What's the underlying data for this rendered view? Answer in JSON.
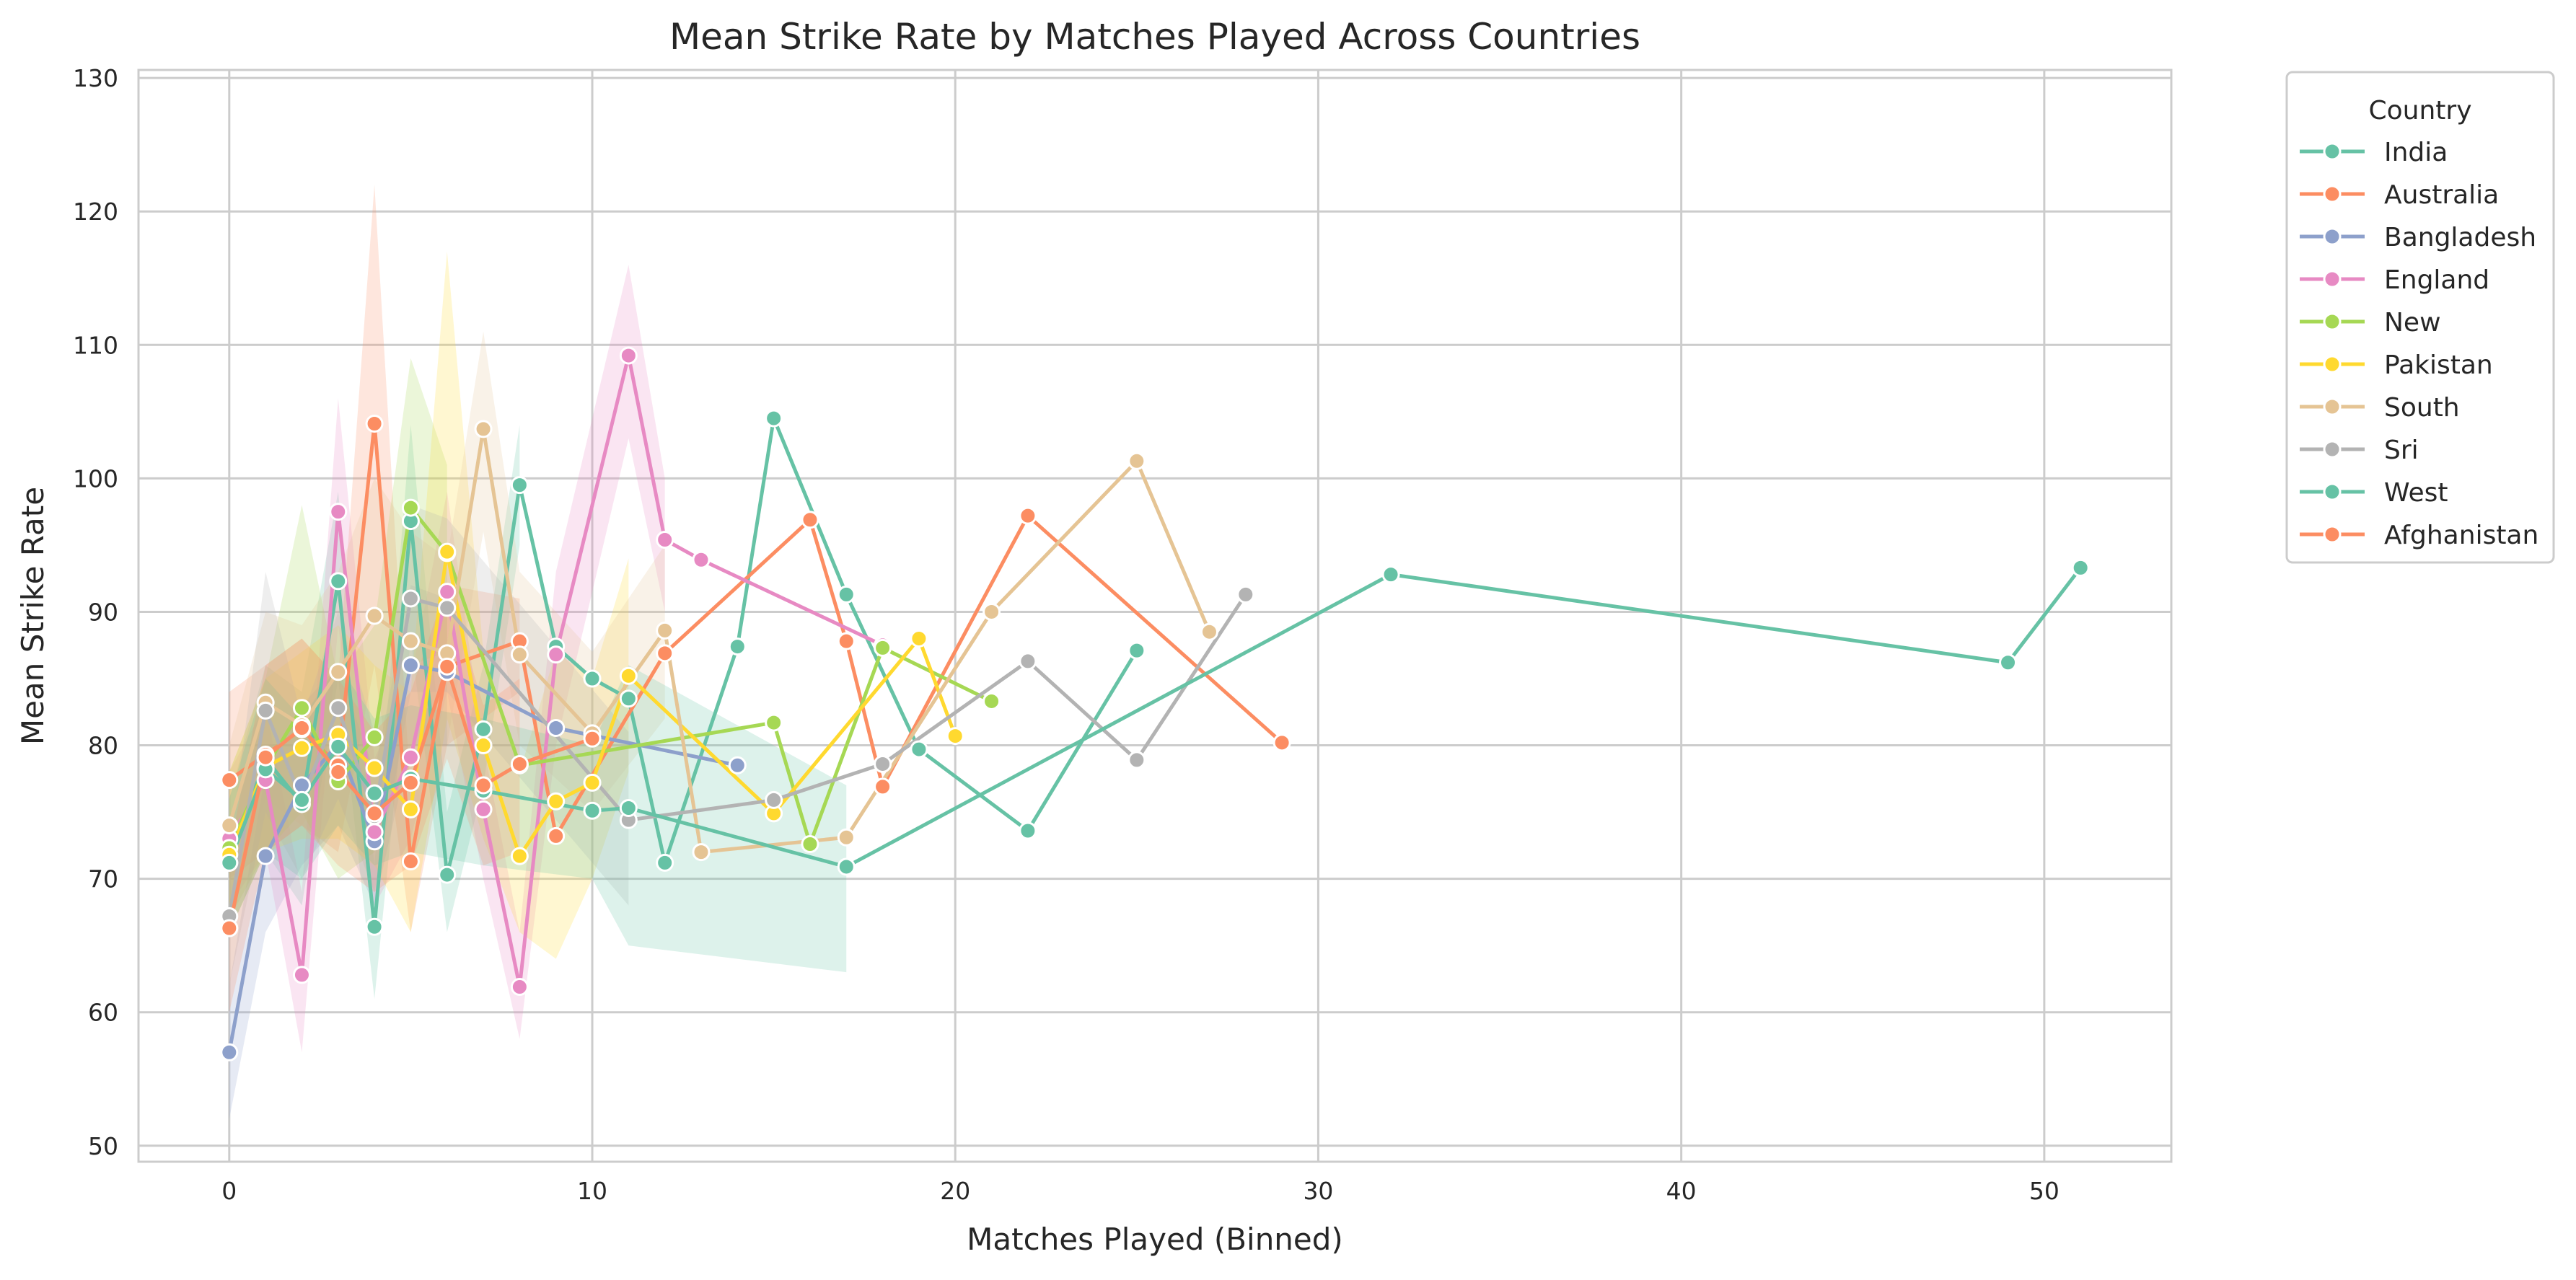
{
  "chart_data": {
    "type": "line",
    "title": "Mean Strike Rate by Matches Played Across Countries",
    "xlabel": "Matches Played (Binned)",
    "ylabel": "Mean Strike Rate",
    "xlim": [
      -2.5,
      53.5
    ],
    "ylim": [
      48.8,
      130.6
    ],
    "xticks": [
      0,
      10,
      20,
      30,
      40,
      50
    ],
    "yticks": [
      50,
      60,
      70,
      80,
      90,
      100,
      110,
      120,
      130
    ],
    "grid": true,
    "legend": {
      "title": "Country",
      "placement": "outside-top-right"
    },
    "series": [
      {
        "name": "India",
        "color": "#66c2a5",
        "points": [
          [
            0,
            71.2
          ],
          [
            1,
            79.0
          ],
          [
            2,
            75.6
          ],
          [
            3,
            92.3
          ],
          [
            4,
            66.4
          ],
          [
            5,
            96.8
          ],
          [
            6,
            70.3
          ],
          [
            7,
            81.2
          ],
          [
            8,
            99.5
          ],
          [
            9,
            87.4
          ],
          [
            10,
            85.0
          ],
          [
            11,
            83.5
          ],
          [
            12,
            71.2
          ],
          [
            14,
            87.4
          ],
          [
            15,
            104.5
          ],
          [
            17,
            91.3
          ],
          [
            19,
            79.7
          ],
          [
            22,
            73.6
          ],
          [
            25,
            87.1
          ]
        ],
        "band": [
          [
            0,
            66,
            76
          ],
          [
            1,
            72,
            86
          ],
          [
            2,
            68,
            84
          ],
          [
            3,
            85,
            99
          ],
          [
            4,
            61,
            71
          ],
          [
            5,
            88,
            104
          ],
          [
            6,
            66,
            75
          ],
          [
            7,
            77,
            86
          ],
          [
            8,
            95,
            104
          ]
        ]
      },
      {
        "name": "Australia",
        "color": "#fc8d62",
        "points": [
          [
            0,
            77.4
          ],
          [
            1,
            79.3
          ],
          [
            2,
            81.2
          ],
          [
            3,
            78.5
          ],
          [
            4,
            104.1
          ],
          [
            5,
            71.3
          ],
          [
            6,
            85.9
          ],
          [
            8,
            87.8
          ],
          [
            9,
            73.2
          ],
          [
            12,
            86.9
          ],
          [
            16,
            96.9
          ],
          [
            17,
            87.8
          ],
          [
            18,
            76.9
          ],
          [
            22,
            97.2
          ],
          [
            29,
            80.2
          ]
        ],
        "band": [
          [
            0,
            70,
            84
          ],
          [
            1,
            72,
            86
          ],
          [
            2,
            74,
            88
          ],
          [
            3,
            72,
            85
          ],
          [
            4,
            86,
            122
          ],
          [
            5,
            66,
            76
          ],
          [
            6,
            80,
            92
          ],
          [
            8,
            84,
            91
          ]
        ]
      },
      {
        "name": "Bangladesh",
        "color": "#8da0cb",
        "points": [
          [
            0,
            57.0
          ],
          [
            1,
            71.7
          ],
          [
            2,
            77.0
          ],
          [
            3,
            80.1
          ],
          [
            4,
            72.8
          ],
          [
            5,
            86.0
          ],
          [
            6,
            85.5
          ],
          [
            9,
            81.3
          ],
          [
            14,
            78.5
          ]
        ],
        "band": [
          [
            0,
            52,
            62
          ],
          [
            1,
            66,
            78
          ],
          [
            2,
            71,
            83
          ],
          [
            3,
            74,
            86
          ],
          [
            4,
            68,
            78
          ],
          [
            5,
            80,
            92
          ],
          [
            6,
            80,
            91
          ]
        ]
      },
      {
        "name": "England",
        "color": "#e78ac3",
        "points": [
          [
            0,
            73.0
          ],
          [
            1,
            77.4
          ],
          [
            2,
            62.8
          ],
          [
            3,
            97.5
          ],
          [
            4,
            73.5
          ],
          [
            5,
            79.1
          ],
          [
            6,
            91.5
          ],
          [
            7,
            75.2
          ],
          [
            8,
            61.9
          ],
          [
            9,
            86.8
          ],
          [
            11,
            109.2
          ],
          [
            12,
            95.4
          ],
          [
            13,
            93.9
          ],
          [
            18,
            87.5
          ]
        ],
        "band": [
          [
            0,
            68,
            78
          ],
          [
            1,
            72,
            83
          ],
          [
            2,
            57,
            69
          ],
          [
            3,
            89,
            106
          ],
          [
            4,
            68,
            79
          ],
          [
            5,
            73,
            85
          ],
          [
            6,
            84,
            99
          ],
          [
            7,
            70,
            80
          ],
          [
            8,
            58,
            66
          ],
          [
            9,
            80,
            93
          ],
          [
            11,
            103,
            116
          ],
          [
            12,
            90,
            100
          ]
        ]
      },
      {
        "name": "New",
        "color": "#a6d854",
        "points": [
          [
            0,
            72.3
          ],
          [
            1,
            78.3
          ],
          [
            2,
            82.8
          ],
          [
            3,
            77.3
          ],
          [
            4,
            80.6
          ],
          [
            5,
            97.8
          ],
          [
            6,
            94.4
          ],
          [
            8,
            78.5
          ],
          [
            15,
            81.7
          ],
          [
            16,
            72.6
          ],
          [
            18,
            87.3
          ],
          [
            21,
            83.3
          ]
        ],
        "band": [
          [
            0,
            67,
            78
          ],
          [
            1,
            72,
            85
          ],
          [
            2,
            75,
            98
          ],
          [
            3,
            70,
            85
          ],
          [
            4,
            72,
            89
          ],
          [
            5,
            86,
            109
          ],
          [
            6,
            87,
            101
          ]
        ]
      },
      {
        "name": "Pakistan",
        "color": "#ffd92f",
        "points": [
          [
            0,
            71.8
          ],
          [
            1,
            78.4
          ],
          [
            2,
            79.8
          ],
          [
            3,
            80.8
          ],
          [
            4,
            78.3
          ],
          [
            5,
            75.2
          ],
          [
            6,
            94.5
          ],
          [
            7,
            80.0
          ],
          [
            8,
            71.7
          ],
          [
            9,
            75.8
          ],
          [
            10,
            77.2
          ],
          [
            11,
            85.2
          ],
          [
            15,
            74.9
          ],
          [
            19,
            88.0
          ],
          [
            20,
            80.7
          ]
        ],
        "band": [
          [
            0,
            66,
            78
          ],
          [
            1,
            72,
            85
          ],
          [
            2,
            73,
            87
          ],
          [
            3,
            73,
            89
          ],
          [
            4,
            71,
            86
          ],
          [
            5,
            66,
            84
          ],
          [
            6,
            82,
            117
          ],
          [
            7,
            73,
            87
          ],
          [
            8,
            66,
            78
          ],
          [
            9,
            64,
            87
          ],
          [
            10,
            70,
            85
          ],
          [
            11,
            78,
            94
          ]
        ]
      },
      {
        "name": "South",
        "color": "#e5c494",
        "points": [
          [
            0,
            74.0
          ],
          [
            1,
            83.2
          ],
          [
            2,
            81.5
          ],
          [
            3,
            85.5
          ],
          [
            4,
            89.7
          ],
          [
            5,
            87.8
          ],
          [
            6,
            86.9
          ],
          [
            7,
            103.7
          ],
          [
            8,
            86.8
          ],
          [
            10,
            80.9
          ],
          [
            12,
            88.6
          ],
          [
            13,
            72.0
          ],
          [
            17,
            73.1
          ],
          [
            21,
            90.0
          ],
          [
            25,
            101.3
          ],
          [
            27,
            88.5
          ]
        ],
        "band": [
          [
            0,
            68,
            80
          ],
          [
            1,
            76,
            90
          ],
          [
            2,
            74,
            89
          ],
          [
            3,
            78,
            93
          ],
          [
            4,
            80,
            100
          ],
          [
            5,
            80,
            96
          ],
          [
            6,
            80,
            94
          ],
          [
            7,
            96,
            111
          ],
          [
            8,
            80,
            93
          ],
          [
            10,
            75,
            87
          ],
          [
            12,
            82,
            95
          ]
        ]
      },
      {
        "name": "Sri",
        "color": "#b3b3b3",
        "points": [
          [
            0,
            67.2
          ],
          [
            1,
            82.6
          ],
          [
            2,
            75.9
          ],
          [
            3,
            82.8
          ],
          [
            4,
            74.7
          ],
          [
            5,
            91.0
          ],
          [
            6,
            90.3
          ],
          [
            11,
            74.4
          ],
          [
            15,
            75.9
          ],
          [
            18,
            78.6
          ],
          [
            22,
            86.3
          ],
          [
            25,
            78.9
          ],
          [
            28,
            91.3
          ]
        ],
        "band": [
          [
            0,
            62,
            72
          ],
          [
            1,
            75,
            93
          ],
          [
            2,
            70,
            82
          ],
          [
            3,
            76,
            90
          ],
          [
            4,
            69,
            81
          ],
          [
            5,
            84,
            98
          ],
          [
            6,
            84,
            97
          ],
          [
            11,
            68,
            81
          ]
        ]
      },
      {
        "name": "West",
        "color": "#66c2a5",
        "points": [
          [
            0,
            71.2
          ],
          [
            1,
            78.2
          ],
          [
            2,
            75.9
          ],
          [
            3,
            79.9
          ],
          [
            4,
            76.4
          ],
          [
            5,
            77.5
          ],
          [
            7,
            76.6
          ],
          [
            10,
            75.1
          ],
          [
            11,
            75.3
          ],
          [
            17,
            70.9
          ],
          [
            32,
            92.8
          ],
          [
            49,
            86.2
          ],
          [
            51,
            93.3
          ]
        ],
        "band": [
          [
            0,
            66,
            76
          ],
          [
            1,
            72,
            85
          ],
          [
            2,
            70,
            82
          ],
          [
            3,
            74,
            86
          ],
          [
            4,
            71,
            82
          ],
          [
            5,
            72,
            83
          ],
          [
            7,
            71,
            82
          ],
          [
            10,
            70,
            80
          ],
          [
            11,
            65,
            86
          ],
          [
            17,
            63,
            77
          ]
        ]
      },
      {
        "name": "Afghanistan",
        "color": "#fc8d62",
        "points": [
          [
            0,
            66.3
          ],
          [
            1,
            79.1
          ],
          [
            2,
            81.3
          ],
          [
            3,
            78.0
          ],
          [
            4,
            74.9
          ],
          [
            5,
            77.2
          ],
          [
            6,
            85.9
          ],
          [
            7,
            77.0
          ],
          [
            8,
            78.6
          ],
          [
            10,
            80.5
          ]
        ],
        "band": [
          [
            0,
            60,
            72
          ],
          [
            1,
            72,
            86
          ],
          [
            2,
            74,
            88
          ],
          [
            3,
            71,
            85
          ],
          [
            4,
            69,
            81
          ],
          [
            5,
            71,
            84
          ],
          [
            6,
            79,
            92
          ],
          [
            7,
            71,
            83
          ],
          [
            8,
            72,
            85
          ]
        ]
      }
    ]
  }
}
